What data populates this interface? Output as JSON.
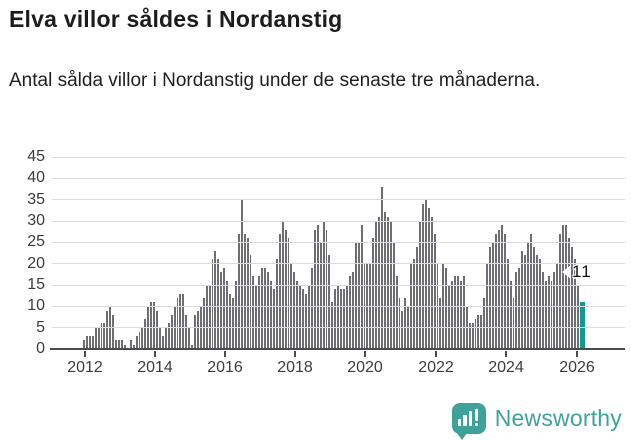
{
  "header": {
    "title": "Elva villor såldes i Nordanstig",
    "subtitle": "Antal sålda villor i Nordanstig under de senaste tre månaderna."
  },
  "chart_data": {
    "type": "bar",
    "title": "Elva villor såldes i Nordanstig",
    "subtitle": "Antal sålda villor i Nordanstig under de senaste tre månaderna.",
    "xlabel": "",
    "ylabel": "",
    "ylim": [
      0,
      45
    ],
    "grid": "horizontal",
    "legend": "none",
    "y_ticks": [
      0,
      5,
      10,
      15,
      20,
      25,
      30,
      35,
      40,
      45
    ],
    "x_tick_labels": [
      "2012",
      "2014",
      "2016",
      "2018",
      "2020",
      "2022",
      "2024",
      "2026"
    ],
    "bar_color": "#6e6d74",
    "highlight_color": "#13998f",
    "highlight_index": 170,
    "annotation": {
      "text": "11",
      "value": 11
    },
    "values": [
      2,
      3,
      3,
      3,
      5,
      5,
      6,
      6,
      9,
      10,
      8,
      2,
      2,
      2,
      1,
      0,
      2,
      1,
      3,
      4,
      5,
      7,
      10,
      11,
      11,
      9,
      5,
      3,
      5,
      6,
      8,
      10,
      12,
      13,
      13,
      8,
      5,
      1,
      8,
      9,
      10,
      12,
      15,
      15,
      21,
      23,
      21,
      18,
      19,
      16,
      13,
      12,
      16,
      27,
      35,
      27,
      26,
      22,
      17,
      15,
      17,
      19,
      19,
      18,
      16,
      14,
      21,
      27,
      30,
      28,
      26,
      20,
      18,
      16,
      15,
      14,
      13,
      15,
      19,
      28,
      29,
      25,
      30,
      28,
      22,
      11,
      14,
      15,
      14,
      14,
      15,
      17,
      18,
      25,
      25,
      29,
      20,
      20,
      20,
      26,
      30,
      31,
      38,
      32,
      31,
      30,
      25,
      17,
      12,
      9,
      12,
      10,
      20,
      21,
      24,
      30,
      34,
      35,
      33,
      31,
      27,
      20,
      12,
      20,
      19,
      15,
      16,
      17,
      17,
      16,
      17,
      10,
      6,
      6,
      7,
      8,
      8,
      12,
      20,
      24,
      25,
      27,
      28,
      29,
      27,
      21,
      16,
      12,
      18,
      19,
      23,
      22,
      25,
      27,
      24,
      22,
      21,
      18,
      16,
      17,
      16,
      18,
      20,
      27,
      29,
      29,
      26,
      24,
      21,
      15,
      11
    ]
  },
  "footer": {
    "brand": "Newsworthy",
    "brand_color": "#3ea29b"
  }
}
